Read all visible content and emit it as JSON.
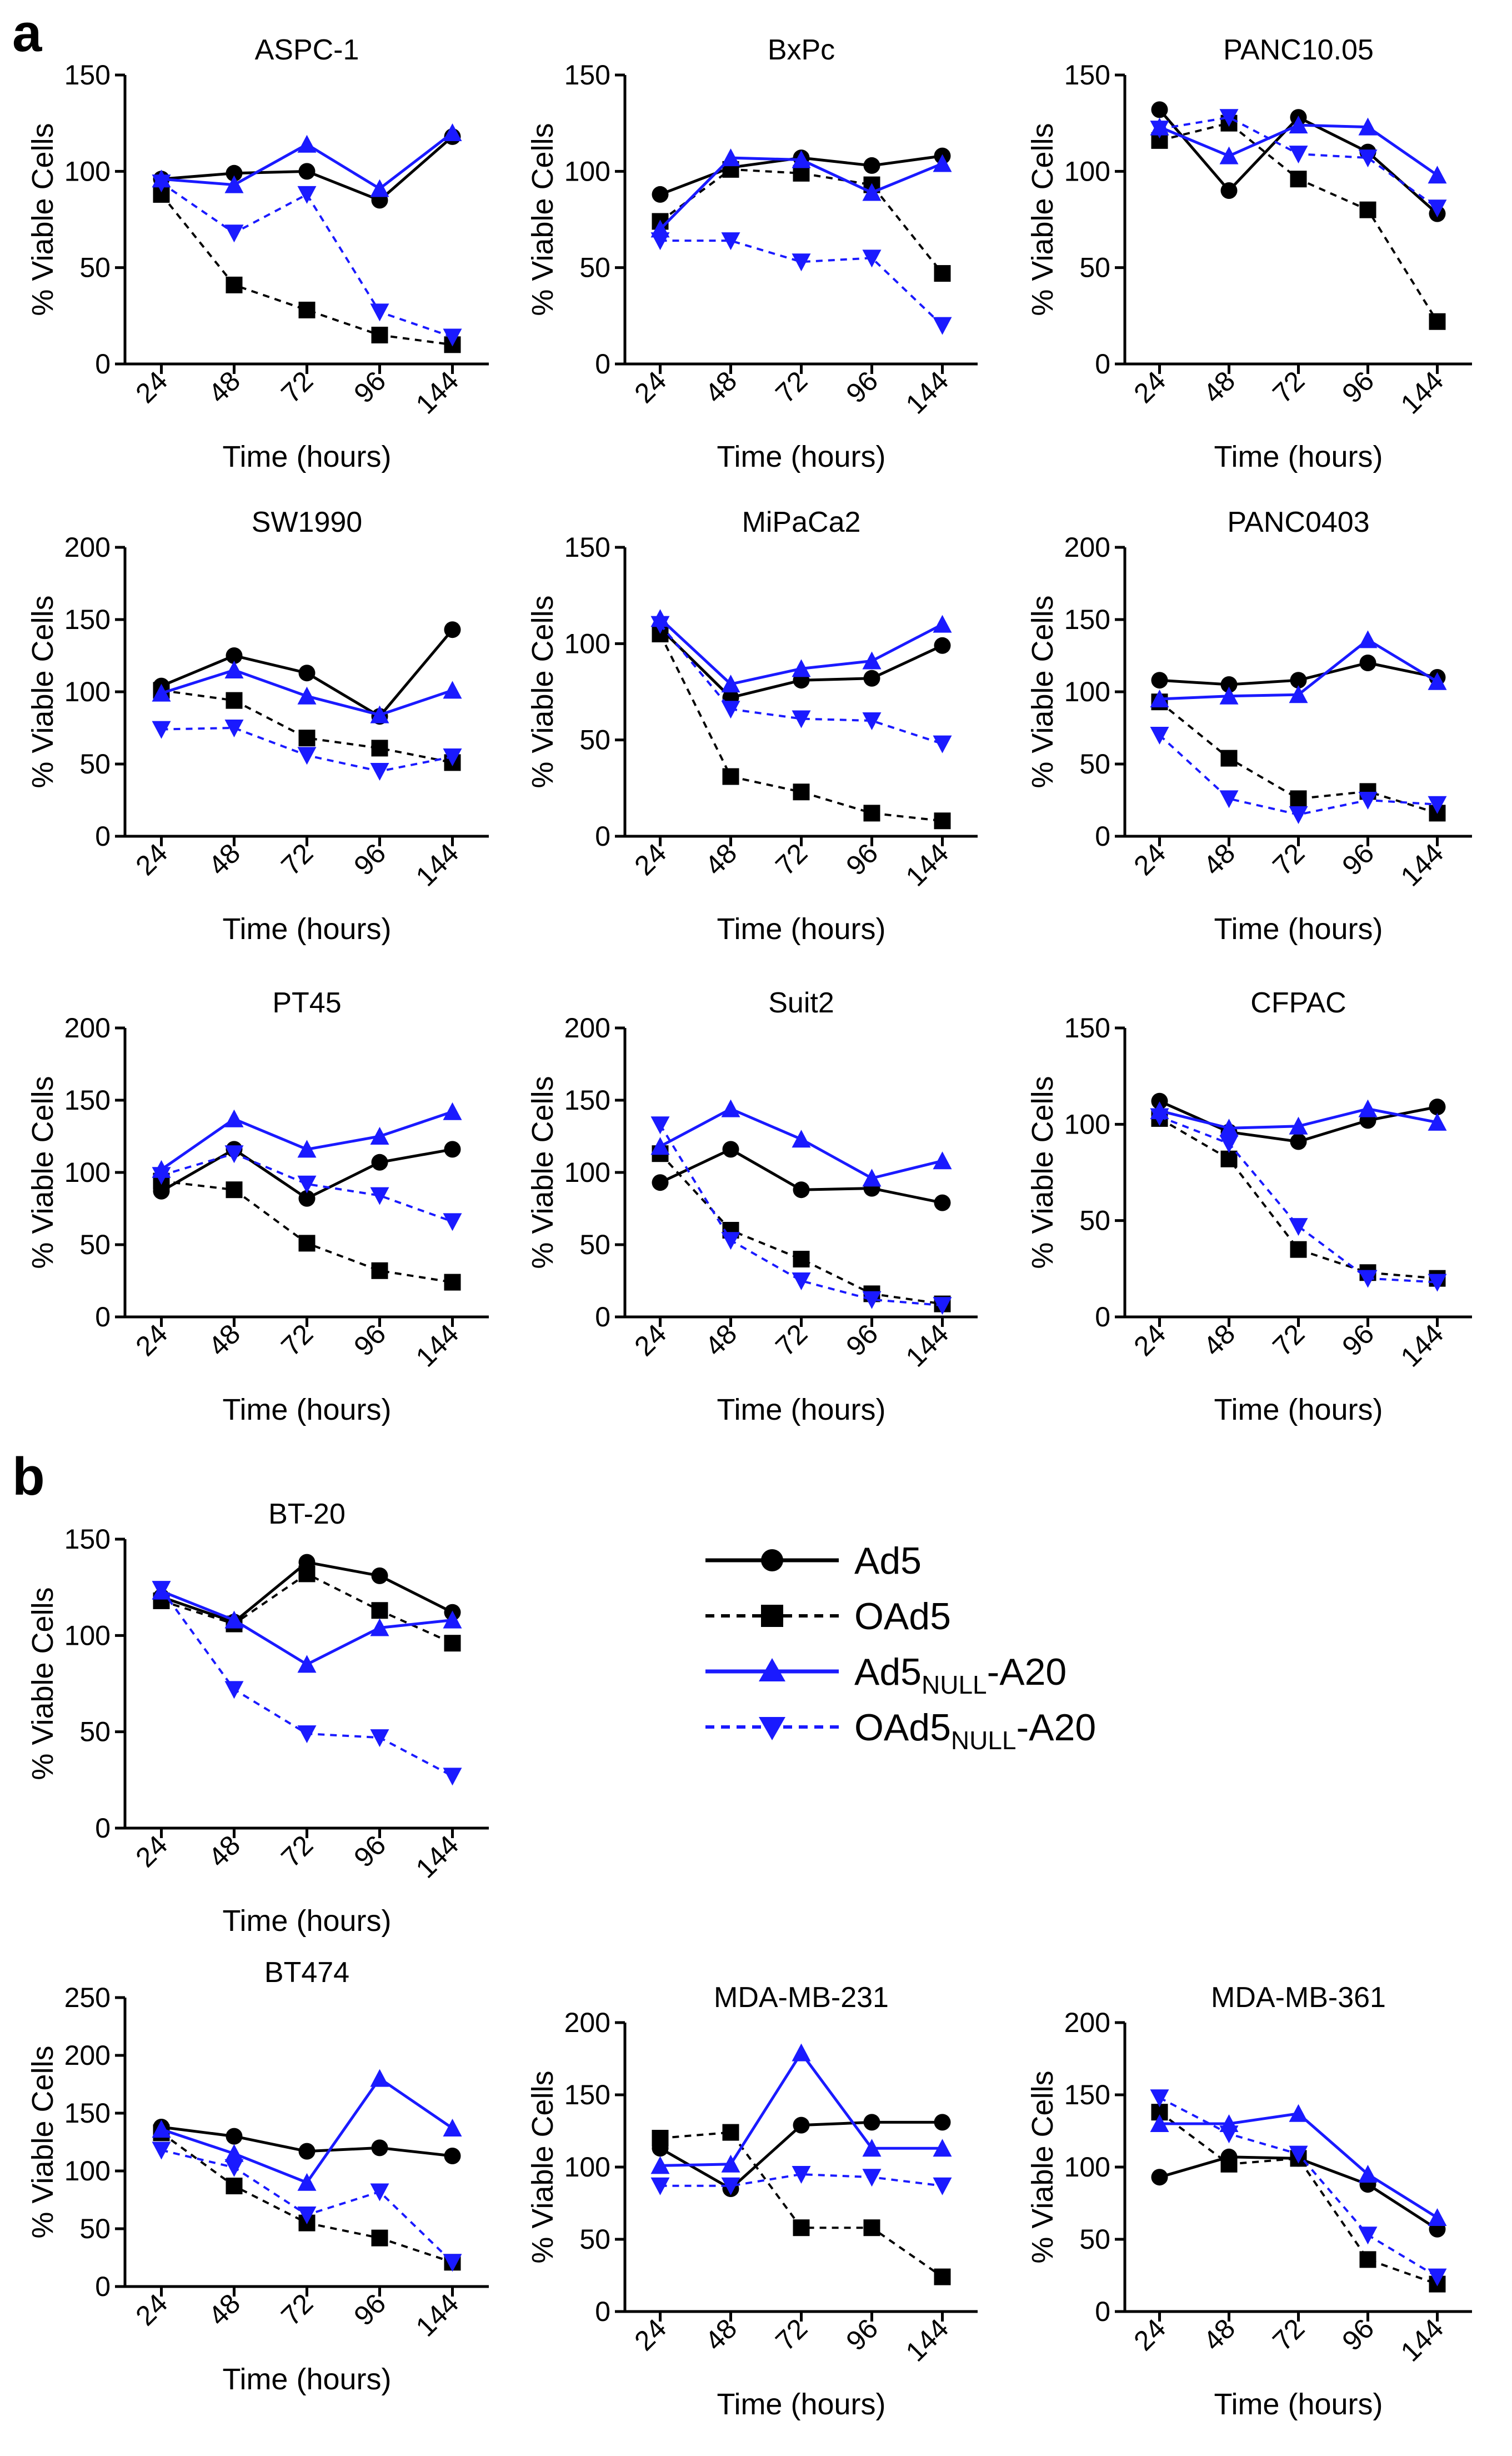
{
  "figure": {
    "panel_labels": [
      "a",
      "b"
    ],
    "legend": [
      {
        "id": "ad5",
        "main": "Ad5",
        "sub": "",
        "tail": "",
        "color": "#000000",
        "marker": "circle",
        "dashed": false
      },
      {
        "id": "oad5",
        "main": "OAd5",
        "sub": "",
        "tail": "",
        "color": "#000000",
        "marker": "square",
        "dashed": true
      },
      {
        "id": "ad5null",
        "main": "Ad5",
        "sub": "NULL",
        "tail": "-A20",
        "color": "#1a1aff",
        "marker": "triangle-up",
        "dashed": false
      },
      {
        "id": "oad5null",
        "main": "OAd5",
        "sub": "NULL",
        "tail": "-A20",
        "color": "#1a1aff",
        "marker": "triangle-down",
        "dashed": true
      }
    ]
  },
  "chart_data": [
    {
      "type": "line",
      "title": "ASPC-1",
      "xlabel": "Time (hours)",
      "ylabel": "% Viable Cells",
      "categories": [
        "24",
        "48",
        "72",
        "96",
        "144"
      ],
      "ylim": [
        0,
        150
      ],
      "yticks": [
        0,
        50,
        100,
        150
      ],
      "series": [
        {
          "name": "Ad5",
          "values": [
            96,
            99,
            100,
            85,
            118
          ]
        },
        {
          "name": "OAd5",
          "values": [
            88,
            41,
            28,
            15,
            10
          ]
        },
        {
          "name": "Ad5NULL-A20",
          "values": [
            96,
            93,
            114,
            91,
            120
          ]
        },
        {
          "name": "OAd5NULL-A20",
          "values": [
            94,
            68,
            88,
            27,
            14
          ]
        }
      ]
    },
    {
      "type": "line",
      "title": "BxPc",
      "xlabel": "Time (hours)",
      "ylabel": "% Viable Cells",
      "categories": [
        "24",
        "48",
        "72",
        "96",
        "144"
      ],
      "ylim": [
        0,
        150
      ],
      "yticks": [
        0,
        50,
        100,
        150
      ],
      "series": [
        {
          "name": "Ad5",
          "values": [
            88,
            102,
            107,
            103,
            108
          ]
        },
        {
          "name": "OAd5",
          "values": [
            74,
            101,
            99,
            93,
            47
          ]
        },
        {
          "name": "Ad5NULL-A20",
          "values": [
            70,
            107,
            106,
            89,
            104
          ]
        },
        {
          "name": "OAd5NULL-A20",
          "values": [
            64,
            64,
            53,
            55,
            20
          ]
        }
      ]
    },
    {
      "type": "line",
      "title": "PANC10.05",
      "xlabel": "Time (hours)",
      "ylabel": "% Viable Cells",
      "categories": [
        "24",
        "48",
        "72",
        "96",
        "144"
      ],
      "ylim": [
        0,
        150
      ],
      "yticks": [
        0,
        50,
        100,
        150
      ],
      "series": [
        {
          "name": "Ad5",
          "values": [
            132,
            90,
            128,
            110,
            78
          ]
        },
        {
          "name": "OAd5",
          "values": [
            116,
            125,
            96,
            80,
            22
          ]
        },
        {
          "name": "Ad5NULL-A20",
          "values": [
            123,
            108,
            124,
            123,
            98
          ]
        },
        {
          "name": "OAd5NULL-A20",
          "values": [
            122,
            128,
            109,
            107,
            81
          ]
        }
      ]
    },
    {
      "type": "line",
      "title": "SW1990",
      "xlabel": "Time (hours)",
      "ylabel": "% Viable Cells",
      "categories": [
        "24",
        "48",
        "72",
        "96",
        "144"
      ],
      "ylim": [
        0,
        200
      ],
      "yticks": [
        0,
        50,
        100,
        150,
        200
      ],
      "series": [
        {
          "name": "Ad5",
          "values": [
            104,
            125,
            113,
            83,
            143
          ]
        },
        {
          "name": "OAd5",
          "values": [
            101,
            94,
            68,
            61,
            51
          ]
        },
        {
          "name": "Ad5NULL-A20",
          "values": [
            99,
            115,
            97,
            84,
            101
          ]
        },
        {
          "name": "OAd5NULL-A20",
          "values": [
            74,
            75,
            56,
            45,
            55
          ]
        }
      ]
    },
    {
      "type": "line",
      "title": "MiPaCa2",
      "xlabel": "Time (hours)",
      "ylabel": "% Viable Cells",
      "categories": [
        "24",
        "48",
        "72",
        "96",
        "144"
      ],
      "ylim": [
        0,
        150
      ],
      "yticks": [
        0,
        50,
        100,
        150
      ],
      "series": [
        {
          "name": "Ad5",
          "values": [
            108,
            72,
            81,
            82,
            99
          ]
        },
        {
          "name": "OAd5",
          "values": [
            105,
            31,
            23,
            12,
            8
          ]
        },
        {
          "name": "Ad5NULL-A20",
          "values": [
            113,
            79,
            87,
            91,
            110
          ]
        },
        {
          "name": "OAd5NULL-A20",
          "values": [
            110,
            66,
            61,
            60,
            48
          ]
        }
      ]
    },
    {
      "type": "line",
      "title": "PANC0403",
      "xlabel": "Time (hours)",
      "ylabel": "% Viable Cells",
      "categories": [
        "24",
        "48",
        "72",
        "96",
        "144"
      ],
      "ylim": [
        0,
        200
      ],
      "yticks": [
        0,
        50,
        100,
        150,
        200
      ],
      "series": [
        {
          "name": "Ad5",
          "values": [
            108,
            105,
            108,
            120,
            110
          ]
        },
        {
          "name": "OAd5",
          "values": [
            93,
            54,
            26,
            31,
            16
          ]
        },
        {
          "name": "Ad5NULL-A20",
          "values": [
            95,
            97,
            98,
            136,
            107
          ]
        },
        {
          "name": "OAd5NULL-A20",
          "values": [
            70,
            26,
            15,
            25,
            22
          ]
        }
      ]
    },
    {
      "type": "line",
      "title": "PT45",
      "xlabel": "Time (hours)",
      "ylabel": "% Viable Cells",
      "categories": [
        "24",
        "48",
        "72",
        "96",
        "144"
      ],
      "ylim": [
        0,
        200
      ],
      "yticks": [
        0,
        50,
        100,
        150,
        200
      ],
      "series": [
        {
          "name": "Ad5",
          "values": [
            87,
            116,
            82,
            107,
            116
          ]
        },
        {
          "name": "OAd5",
          "values": [
            94,
            88,
            51,
            32,
            24
          ]
        },
        {
          "name": "Ad5NULL-A20",
          "values": [
            102,
            137,
            116,
            125,
            142
          ]
        },
        {
          "name": "OAd5NULL-A20",
          "values": [
            98,
            113,
            92,
            84,
            66
          ]
        }
      ]
    },
    {
      "type": "line",
      "title": "Suit2",
      "xlabel": "Time (hours)",
      "ylabel": "% Viable Cells",
      "categories": [
        "24",
        "48",
        "72",
        "96",
        "144"
      ],
      "ylim": [
        0,
        200
      ],
      "yticks": [
        0,
        50,
        100,
        150,
        200
      ],
      "series": [
        {
          "name": "Ad5",
          "values": [
            93,
            116,
            88,
            89,
            79
          ]
        },
        {
          "name": "OAd5",
          "values": [
            113,
            60,
            40,
            16,
            9
          ]
        },
        {
          "name": "Ad5NULL-A20",
          "values": [
            118,
            144,
            123,
            96,
            108
          ]
        },
        {
          "name": "OAd5NULL-A20",
          "values": [
            133,
            53,
            25,
            12,
            8
          ]
        }
      ]
    },
    {
      "type": "line",
      "title": "CFPAC",
      "xlabel": "Time (hours)",
      "ylabel": "% Viable Cells",
      "categories": [
        "24",
        "48",
        "72",
        "96",
        "144"
      ],
      "ylim": [
        0,
        150
      ],
      "yticks": [
        0,
        50,
        100,
        150
      ],
      "series": [
        {
          "name": "Ad5",
          "values": [
            112,
            96,
            91,
            102,
            109
          ]
        },
        {
          "name": "OAd5",
          "values": [
            103,
            82,
            35,
            23,
            20
          ]
        },
        {
          "name": "Ad5NULL-A20",
          "values": [
            107,
            98,
            99,
            108,
            101
          ]
        },
        {
          "name": "OAd5NULL-A20",
          "values": [
            104,
            90,
            47,
            20,
            18
          ]
        }
      ]
    },
    {
      "type": "line",
      "title": "BT-20",
      "xlabel": "Time (hours)",
      "ylabel": "% Viable Cells",
      "categories": [
        "24",
        "48",
        "72",
        "96",
        "144"
      ],
      "ylim": [
        0,
        150
      ],
      "yticks": [
        0,
        50,
        100,
        150
      ],
      "series": [
        {
          "name": "Ad5",
          "values": [
            120,
            107,
            138,
            131,
            112
          ]
        },
        {
          "name": "OAd5",
          "values": [
            118,
            106,
            132,
            113,
            96
          ]
        },
        {
          "name": "Ad5NULL-A20",
          "values": [
            123,
            108,
            85,
            104,
            108
          ]
        },
        {
          "name": "OAd5NULL-A20",
          "values": [
            124,
            72,
            49,
            47,
            27
          ]
        }
      ]
    },
    {
      "type": "line",
      "title": "BT474",
      "xlabel": "Time (hours)",
      "ylabel": "% Viable Cells",
      "categories": [
        "24",
        "48",
        "72",
        "96",
        "144"
      ],
      "ylim": [
        0,
        250
      ],
      "yticks": [
        0,
        50,
        100,
        150,
        200,
        250
      ],
      "series": [
        {
          "name": "Ad5",
          "values": [
            138,
            130,
            117,
            120,
            113
          ]
        },
        {
          "name": "OAd5",
          "values": [
            133,
            87,
            55,
            42,
            21
          ]
        },
        {
          "name": "Ad5NULL-A20",
          "values": [
            136,
            115,
            90,
            180,
            137
          ]
        },
        {
          "name": "OAd5NULL-A20",
          "values": [
            118,
            103,
            62,
            82,
            21
          ]
        }
      ]
    },
    {
      "type": "line",
      "title": "MDA-MB-231",
      "xlabel": "Time (hours)",
      "ylabel": "% Viable Cells",
      "categories": [
        "24",
        "48",
        "72",
        "96",
        "144"
      ],
      "ylim": [
        0,
        200
      ],
      "yticks": [
        0,
        50,
        100,
        150,
        200
      ],
      "series": [
        {
          "name": "Ad5",
          "values": [
            113,
            85,
            129,
            131,
            131
          ]
        },
        {
          "name": "OAd5",
          "values": [
            120,
            124,
            58,
            58,
            24
          ]
        },
        {
          "name": "Ad5NULL-A20",
          "values": [
            101,
            102,
            179,
            113,
            113
          ]
        },
        {
          "name": "OAd5NULL-A20",
          "values": [
            87,
            87,
            95,
            93,
            87
          ]
        }
      ]
    },
    {
      "type": "line",
      "title": "MDA-MB-361",
      "xlabel": "Time (hours)",
      "ylabel": "% Viable Cells",
      "categories": [
        "24",
        "48",
        "72",
        "96",
        "144"
      ],
      "ylim": [
        0,
        200
      ],
      "yticks": [
        0,
        50,
        100,
        150,
        200
      ],
      "series": [
        {
          "name": "Ad5",
          "values": [
            93,
            107,
            106,
            88,
            57
          ]
        },
        {
          "name": "OAd5",
          "values": [
            138,
            102,
            106,
            36,
            19
          ]
        },
        {
          "name": "Ad5NULL-A20",
          "values": [
            130,
            130,
            137,
            95,
            65
          ]
        },
        {
          "name": "OAd5NULL-A20",
          "values": [
            148,
            123,
            109,
            53,
            24
          ]
        }
      ]
    }
  ]
}
